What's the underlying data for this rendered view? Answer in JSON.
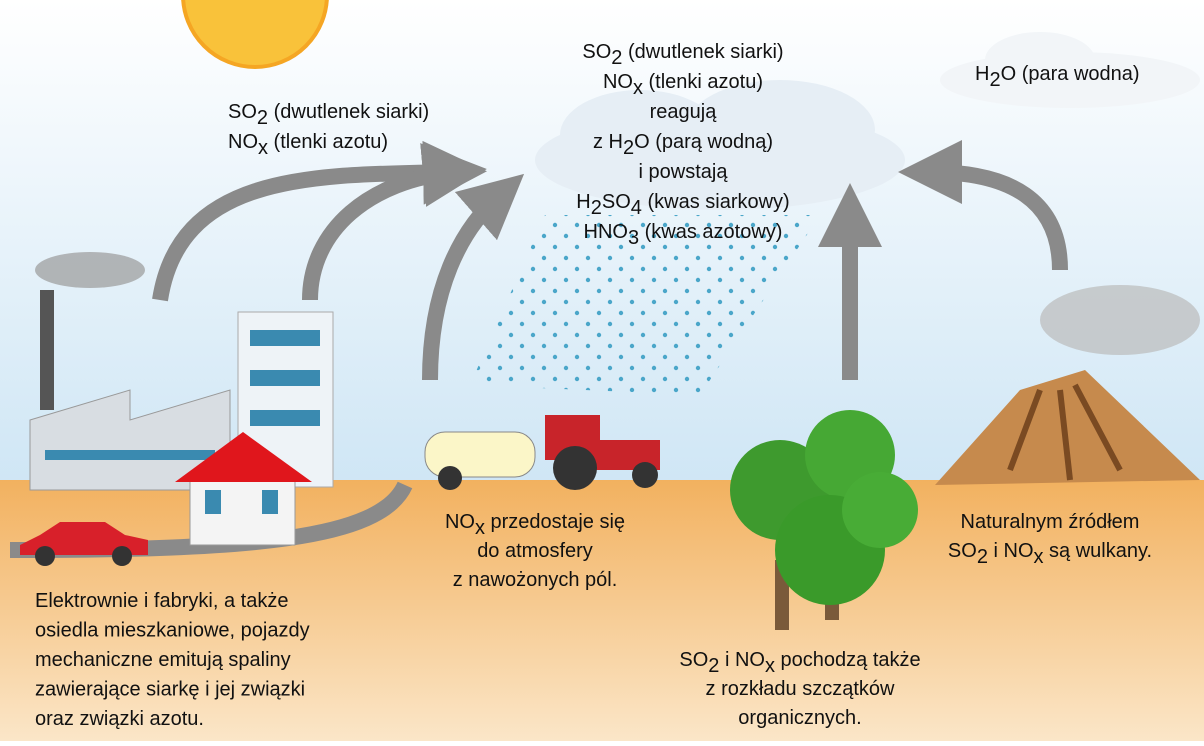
{
  "labels": {
    "factory_gases": [
      [
        "SO",
        {
          "sub": "2"
        },
        " (dwutlenek siarki)"
      ],
      [
        "NO",
        {
          "sub": "x"
        },
        " (tlenki azotu)"
      ]
    ],
    "cloud": [
      [
        "SO",
        {
          "sub": "2"
        },
        " (dwutlenek siarki)"
      ],
      [
        "NO",
        {
          "sub": "x"
        },
        " (tlenki azotu)"
      ],
      [
        "reagują"
      ],
      [
        "z H",
        {
          "sub": "2"
        },
        "O (parą wodną)"
      ],
      [
        "i powstają"
      ],
      [
        "H",
        {
          "sub": "2"
        },
        "SO",
        {
          "sub": "4"
        },
        " (kwas siarkowy)"
      ],
      [
        "HNO",
        {
          "sub": "3"
        },
        " (kwas azotowy)"
      ]
    ],
    "water_vapor": [
      [
        "H",
        {
          "sub": "2"
        },
        "O (para wodna)"
      ]
    ],
    "fields": [
      [
        "NO",
        {
          "sub": "x"
        },
        " przedostaje się"
      ],
      [
        "do atmosfery"
      ],
      [
        "z nawożonych pól."
      ]
    ],
    "volcano": [
      [
        "Naturalnym źródłem"
      ],
      [
        "SO",
        {
          "sub": "2"
        },
        " i NO",
        {
          "sub": "x"
        },
        " są wulkany."
      ]
    ],
    "factories": [
      [
        "Elektrownie i fabryki, a także"
      ],
      [
        "osiedla mieszkaniowe, pojazdy"
      ],
      [
        "mechaniczne emitują spaliny"
      ],
      [
        "zawierające siarkę i jej związki"
      ],
      [
        "oraz związki azotu."
      ]
    ],
    "decay": [
      [
        "SO",
        {
          "sub": "2"
        },
        " i NO",
        {
          "sub": "x"
        },
        " pochodzą także"
      ],
      [
        "z rozkładu szczątków"
      ],
      [
        "organicznych."
      ]
    ]
  }
}
